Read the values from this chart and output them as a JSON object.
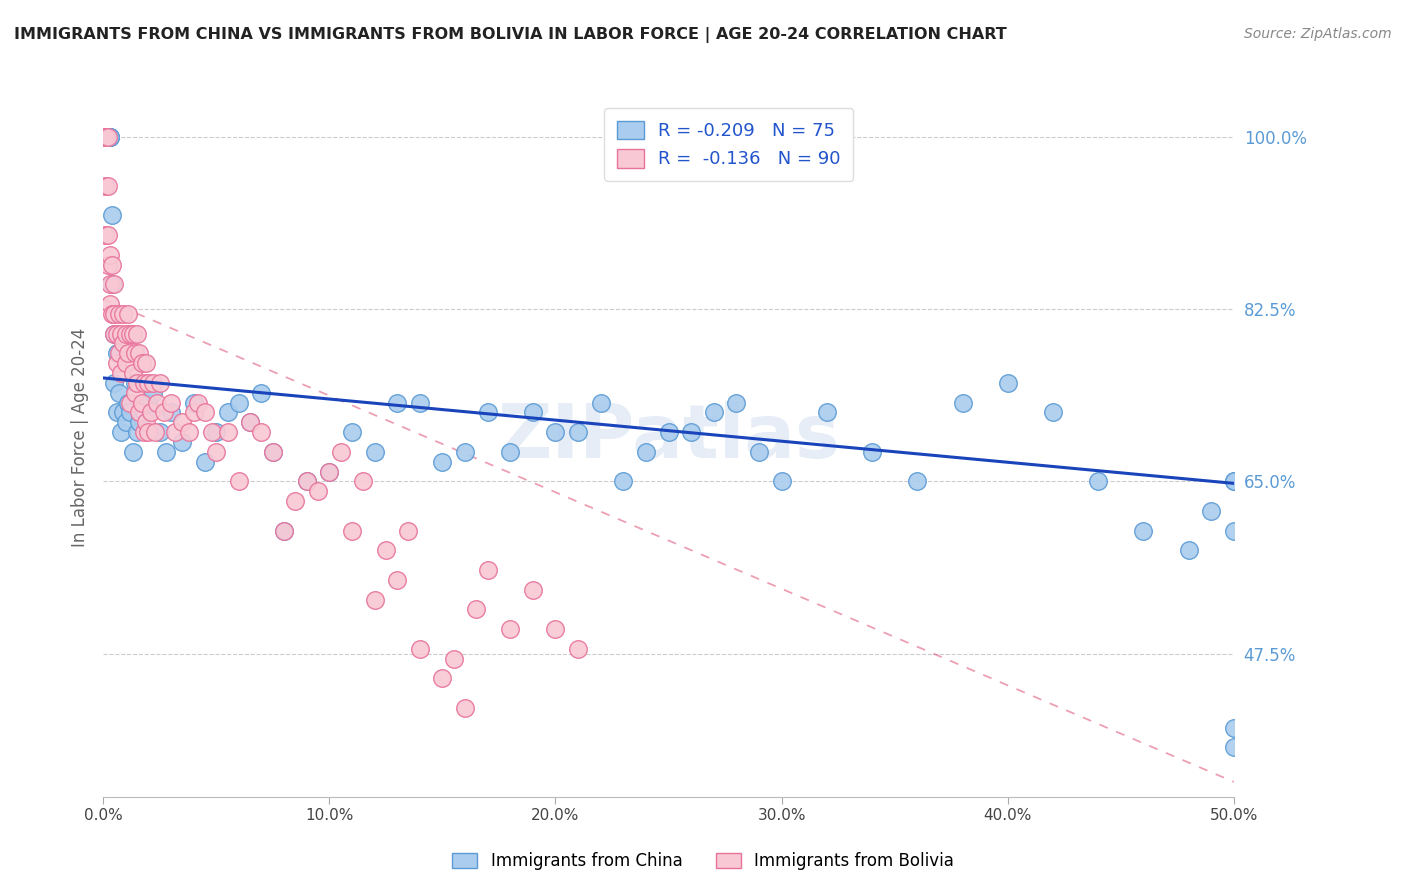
{
  "title": "IMMIGRANTS FROM CHINA VS IMMIGRANTS FROM BOLIVIA IN LABOR FORCE | AGE 20-24 CORRELATION CHART",
  "source": "Source: ZipAtlas.com",
  "ylabel": "In Labor Force | Age 20-24",
  "x_min": 0.0,
  "x_max": 0.5,
  "y_min": 0.33,
  "y_max": 1.06,
  "yticks": [
    0.475,
    0.65,
    0.825,
    1.0
  ],
  "ytick_labels": [
    "47.5%",
    "65.0%",
    "82.5%",
    "100.0%"
  ],
  "xticks": [
    0.0,
    0.1,
    0.2,
    0.3,
    0.4,
    0.5
  ],
  "xtick_labels": [
    "0.0%",
    "10.0%",
    "20.0%",
    "30.0%",
    "40.0%",
    "50.0%"
  ],
  "china_color": "#aaccee",
  "china_edge_color": "#5b9bd5",
  "bolivia_color": "#f8c8d4",
  "bolivia_edge_color": "#e8729a",
  "china_R": -0.209,
  "china_N": 75,
  "bolivia_R": -0.136,
  "bolivia_N": 90,
  "china_trend_color": "#1a44bb",
  "bolivia_trend_color": "#e06080",
  "legend_china_label": "Immigrants from China",
  "legend_bolivia_label": "Immigrants from Bolivia",
  "china_trend_x0": 0.0,
  "china_trend_x1": 0.5,
  "china_trend_y0": 0.755,
  "china_trend_y1": 0.648,
  "bolivia_trend_x0": 0.0,
  "bolivia_trend_x1": 0.5,
  "bolivia_trend_y0": 0.835,
  "bolivia_trend_y1": 0.345,
  "background_color": "#ffffff",
  "grid_color": "#cccccc",
  "title_color": "#222222",
  "axis_label_color": "#666666",
  "right_tick_color": "#5b9bd5",
  "watermark_text": "ZIPatlas",
  "watermark_color": "#c8d8ec",
  "watermark_alpha": 0.45,
  "china_x": [
    0.001,
    0.002,
    0.002,
    0.003,
    0.003,
    0.003,
    0.004,
    0.004,
    0.005,
    0.005,
    0.006,
    0.006,
    0.007,
    0.008,
    0.009,
    0.01,
    0.011,
    0.012,
    0.013,
    0.014,
    0.015,
    0.016,
    0.018,
    0.02,
    0.022,
    0.025,
    0.028,
    0.03,
    0.035,
    0.04,
    0.045,
    0.05,
    0.055,
    0.06,
    0.065,
    0.07,
    0.075,
    0.08,
    0.09,
    0.1,
    0.11,
    0.12,
    0.13,
    0.14,
    0.15,
    0.16,
    0.17,
    0.18,
    0.19,
    0.2,
    0.21,
    0.22,
    0.23,
    0.24,
    0.25,
    0.26,
    0.27,
    0.28,
    0.29,
    0.3,
    0.32,
    0.34,
    0.36,
    0.38,
    0.4,
    0.42,
    0.44,
    0.46,
    0.48,
    0.49,
    0.5,
    0.5,
    0.5,
    0.5,
    0.5
  ],
  "china_y": [
    1.0,
    1.0,
    1.0,
    1.0,
    1.0,
    1.0,
    0.85,
    0.92,
    0.75,
    0.8,
    0.72,
    0.78,
    0.74,
    0.7,
    0.72,
    0.71,
    0.73,
    0.72,
    0.68,
    0.75,
    0.7,
    0.71,
    0.72,
    0.73,
    0.74,
    0.7,
    0.68,
    0.72,
    0.69,
    0.73,
    0.67,
    0.7,
    0.72,
    0.73,
    0.71,
    0.74,
    0.68,
    0.6,
    0.65,
    0.66,
    0.7,
    0.68,
    0.73,
    0.73,
    0.67,
    0.68,
    0.72,
    0.68,
    0.72,
    0.7,
    0.7,
    0.73,
    0.65,
    0.68,
    0.7,
    0.7,
    0.72,
    0.73,
    0.68,
    0.65,
    0.72,
    0.68,
    0.65,
    0.73,
    0.75,
    0.72,
    0.65,
    0.6,
    0.58,
    0.62,
    0.65,
    0.6,
    0.4,
    0.38,
    0.65
  ],
  "bolivia_x": [
    0.001,
    0.001,
    0.001,
    0.001,
    0.001,
    0.001,
    0.002,
    0.002,
    0.002,
    0.002,
    0.003,
    0.003,
    0.003,
    0.004,
    0.004,
    0.005,
    0.005,
    0.005,
    0.006,
    0.006,
    0.007,
    0.007,
    0.008,
    0.008,
    0.009,
    0.009,
    0.01,
    0.01,
    0.011,
    0.011,
    0.012,
    0.012,
    0.013,
    0.013,
    0.014,
    0.014,
    0.015,
    0.015,
    0.016,
    0.016,
    0.017,
    0.017,
    0.018,
    0.018,
    0.019,
    0.019,
    0.02,
    0.02,
    0.021,
    0.022,
    0.023,
    0.024,
    0.025,
    0.027,
    0.03,
    0.032,
    0.035,
    0.038,
    0.04,
    0.042,
    0.045,
    0.048,
    0.05,
    0.055,
    0.06,
    0.065,
    0.07,
    0.075,
    0.08,
    0.085,
    0.09,
    0.095,
    0.1,
    0.105,
    0.11,
    0.115,
    0.12,
    0.125,
    0.13,
    0.135,
    0.14,
    0.15,
    0.155,
    0.16,
    0.165,
    0.17,
    0.18,
    0.19,
    0.2,
    0.21
  ],
  "bolivia_y": [
    1.0,
    1.0,
    1.0,
    1.0,
    0.9,
    0.95,
    1.0,
    0.9,
    0.95,
    0.87,
    0.88,
    0.83,
    0.85,
    0.82,
    0.87,
    0.8,
    0.82,
    0.85,
    0.77,
    0.8,
    0.78,
    0.82,
    0.76,
    0.8,
    0.79,
    0.82,
    0.77,
    0.8,
    0.78,
    0.82,
    0.73,
    0.8,
    0.76,
    0.8,
    0.74,
    0.78,
    0.75,
    0.8,
    0.72,
    0.78,
    0.73,
    0.77,
    0.7,
    0.75,
    0.71,
    0.77,
    0.7,
    0.75,
    0.72,
    0.75,
    0.7,
    0.73,
    0.75,
    0.72,
    0.73,
    0.7,
    0.71,
    0.7,
    0.72,
    0.73,
    0.72,
    0.7,
    0.68,
    0.7,
    0.65,
    0.71,
    0.7,
    0.68,
    0.6,
    0.63,
    0.65,
    0.64,
    0.66,
    0.68,
    0.6,
    0.65,
    0.53,
    0.58,
    0.55,
    0.6,
    0.48,
    0.45,
    0.47,
    0.42,
    0.52,
    0.56,
    0.5,
    0.54,
    0.5,
    0.48
  ]
}
